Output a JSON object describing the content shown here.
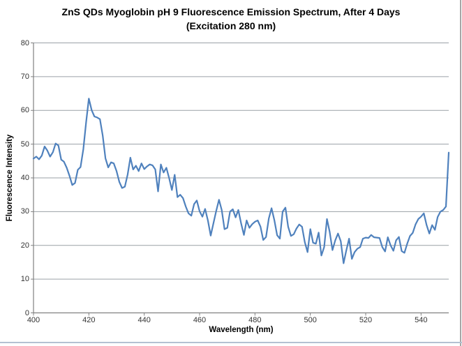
{
  "chart_data": {
    "type": "line",
    "title": "ZnS QDs Myoglobin pH 9 Fluorescence Emission Spectrum, After 4 Days",
    "subtitle": "(Excitation 280 nm)",
    "xlabel": "Wavelength (nm)",
    "ylabel": "Fluorescence Intensity",
    "xlim": [
      400,
      550
    ],
    "ylim": [
      0,
      80
    ],
    "x_ticks": [
      400,
      420,
      440,
      460,
      480,
      500,
      520,
      540
    ],
    "y_ticks": [
      0,
      10,
      20,
      30,
      40,
      50,
      60,
      70,
      80
    ],
    "grid": "horizontal",
    "legend": "none",
    "line_color": "#4F81BD",
    "gridline_color": "#9aa0a6",
    "axis_color": "#808080",
    "x_start": 400,
    "x_step": 1,
    "values": [
      45.7,
      46.3,
      45.5,
      46.6,
      49.3,
      48.1,
      46.3,
      47.6,
      50.2,
      49.6,
      45.4,
      44.8,
      43.0,
      40.6,
      37.9,
      38.5,
      42.4,
      43.2,
      48.5,
      56.5,
      63.5,
      60.1,
      58.2,
      57.9,
      57.4,
      52.5,
      45.8,
      43.1,
      44.6,
      44.3,
      42.0,
      38.8,
      37.0,
      37.4,
      41.0,
      46.0,
      42.5,
      43.6,
      42.0,
      44.3,
      42.6,
      43.4,
      44.0,
      43.7,
      42.5,
      36.0,
      44.0,
      41.6,
      43.0,
      39.9,
      36.4,
      40.9,
      34.3,
      35.0,
      34.0,
      31.5,
      29.5,
      28.8,
      32.2,
      33.3,
      30.1,
      28.5,
      30.8,
      27.4,
      22.9,
      26.5,
      30.2,
      33.5,
      30.5,
      24.8,
      25.2,
      30.0,
      30.7,
      28.3,
      30.5,
      26.5,
      23.1,
      27.4,
      25.2,
      26.3,
      27.0,
      27.4,
      25.5,
      21.6,
      22.5,
      28.0,
      31.0,
      27.5,
      23.0,
      22.0,
      30.0,
      31.2,
      25.5,
      22.8,
      23.3,
      25.0,
      26.2,
      25.5,
      21.0,
      18.0,
      24.8,
      20.8,
      20.5,
      23.8,
      17.0,
      19.5,
      27.8,
      24.0,
      18.6,
      21.5,
      23.5,
      21.2,
      14.7,
      18.5,
      22.0,
      16.0,
      18.0,
      19.0,
      19.5,
      22.0,
      22.3,
      22.2,
      23.1,
      22.4,
      22.3,
      22.2,
      19.5,
      18.2,
      22.4,
      20.0,
      18.4,
      21.5,
      22.5,
      18.3,
      17.8,
      20.5,
      22.8,
      23.7,
      26.2,
      27.8,
      28.5,
      29.5,
      26.0,
      23.5,
      26.0,
      24.6,
      28.4,
      30.0,
      30.5,
      31.5,
      47.5
    ]
  }
}
